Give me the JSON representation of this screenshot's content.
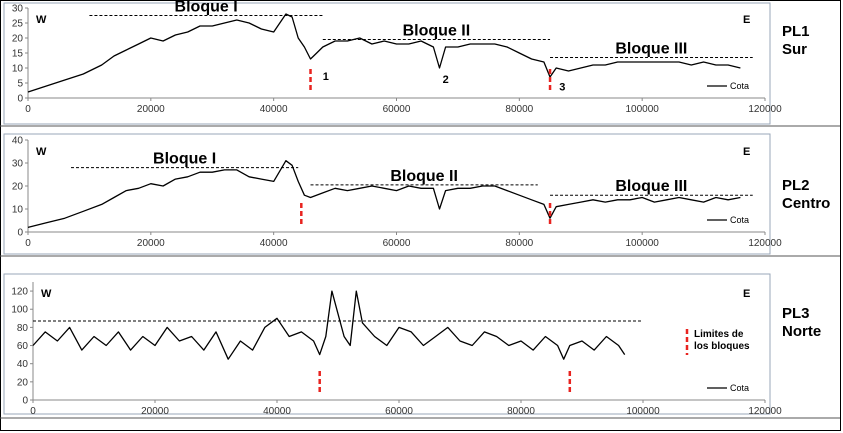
{
  "chart_data": [
    {
      "type": "line",
      "panel_label_lines": [
        "PL1",
        "Sur"
      ],
      "left_label": "W",
      "right_label": "E",
      "xlim": [
        0,
        120000
      ],
      "ylim": [
        0,
        30
      ],
      "xticks": [
        0,
        20000,
        40000,
        60000,
        80000,
        100000,
        120000
      ],
      "yticks": [
        0,
        5,
        10,
        15,
        20,
        25,
        30
      ],
      "legend": "Cota",
      "series": [
        {
          "name": "Cota",
          "x": [
            0,
            3000,
            6000,
            9000,
            12000,
            14000,
            16000,
            18000,
            20000,
            22000,
            24000,
            26000,
            28000,
            30000,
            32000,
            34000,
            36000,
            38000,
            40000,
            42000,
            43000,
            44000,
            45000,
            46000,
            47000,
            48000,
            50000,
            52000,
            54000,
            56000,
            58000,
            60000,
            62000,
            64000,
            66000,
            67000,
            68000,
            70000,
            72000,
            74000,
            76000,
            78000,
            80000,
            82000,
            84000,
            85000,
            86000,
            88000,
            90000,
            92000,
            94000,
            96000,
            98000,
            100000,
            102000,
            104000,
            106000,
            108000,
            110000,
            112000,
            114000,
            116000
          ],
          "y": [
            2,
            4,
            6,
            8,
            11,
            14,
            16,
            18,
            20,
            19,
            21,
            22,
            24,
            24,
            25,
            26,
            25,
            23,
            22,
            28,
            27,
            20,
            17,
            13,
            15,
            17,
            19,
            19,
            20,
            18,
            19,
            18,
            18,
            19,
            17,
            10,
            17,
            17,
            18,
            18,
            18,
            17,
            15,
            13,
            12,
            7,
            10,
            9,
            10,
            11,
            11,
            12,
            12,
            12,
            12,
            12,
            12,
            11,
            12,
            11,
            11,
            10
          ]
        }
      ],
      "blocks": [
        {
          "label": "Bloque I",
          "range": [
            10000,
            48000
          ],
          "level": 27.5
        },
        {
          "label": "Bloque II",
          "range": [
            48000,
            85000
          ],
          "level": 19.5
        },
        {
          "label": "Bloque III",
          "range": [
            85000,
            118000
          ],
          "level": 13.5
        }
      ],
      "boundaries": [
        46000,
        85000
      ],
      "boundary_numbers": [
        {
          "text": "1",
          "x": 48500,
          "y": 6
        },
        {
          "text": "2",
          "x": 68000,
          "y": 5
        },
        {
          "text": "3",
          "x": 87000,
          "y": 2.5
        }
      ]
    },
    {
      "type": "line",
      "panel_label_lines": [
        "PL2",
        "Centro"
      ],
      "left_label": "W",
      "right_label": "E",
      "xlim": [
        0,
        120000
      ],
      "ylim": [
        0,
        40
      ],
      "xticks": [
        0,
        20000,
        40000,
        60000,
        80000,
        100000,
        120000
      ],
      "yticks": [
        0,
        10,
        20,
        30,
        40
      ],
      "legend": "Cota",
      "series": [
        {
          "name": "Cota",
          "x": [
            0,
            3000,
            6000,
            9000,
            12000,
            14000,
            16000,
            18000,
            20000,
            22000,
            24000,
            26000,
            28000,
            30000,
            32000,
            34000,
            36000,
            38000,
            40000,
            42000,
            43000,
            44000,
            45000,
            46000,
            48000,
            50000,
            52000,
            54000,
            56000,
            58000,
            60000,
            62000,
            64000,
            66000,
            67000,
            68000,
            70000,
            72000,
            74000,
            76000,
            78000,
            80000,
            82000,
            84000,
            85000,
            86000,
            88000,
            90000,
            92000,
            94000,
            96000,
            98000,
            100000,
            102000,
            104000,
            106000,
            108000,
            110000,
            112000,
            114000,
            116000
          ],
          "y": [
            2,
            4,
            6,
            9,
            12,
            15,
            18,
            19,
            21,
            20,
            23,
            24,
            26,
            26,
            27,
            27,
            24,
            23,
            22,
            31,
            29,
            22,
            16,
            15,
            17,
            19,
            18,
            19,
            20,
            19,
            18,
            20,
            19,
            19,
            10,
            18,
            19,
            19,
            20,
            20,
            18,
            16,
            14,
            12,
            6,
            11,
            12,
            13,
            14,
            13,
            14,
            14,
            15,
            13,
            14,
            15,
            14,
            13,
            15,
            14,
            15
          ]
        }
      ],
      "blocks": [
        {
          "label": "Bloque I",
          "range": [
            7000,
            44000
          ],
          "level": 28
        },
        {
          "label": "Bloque II",
          "range": [
            46000,
            83000
          ],
          "level": 20.5
        },
        {
          "label": "Bloque III",
          "range": [
            85000,
            118000
          ],
          "level": 16
        }
      ],
      "boundaries": [
        44500,
        85000
      ],
      "boundary_numbers": []
    },
    {
      "type": "line",
      "panel_label_lines": [
        "PL3",
        "Norte"
      ],
      "left_label": "W",
      "right_label": "E",
      "xlim": [
        0,
        120000
      ],
      "ylim": [
        0,
        130
      ],
      "xticks": [
        0,
        20000,
        40000,
        60000,
        80000,
        100000,
        120000
      ],
      "yticks": [
        0,
        20,
        40,
        60,
        80,
        100,
        120
      ],
      "legend": "Cota",
      "legend_note_lines": [
        "Limites de",
        "los bloques"
      ],
      "series": [
        {
          "name": "Cota",
          "x": [
            0,
            2000,
            4000,
            6000,
            8000,
            10000,
            12000,
            14000,
            16000,
            18000,
            20000,
            22000,
            24000,
            26000,
            28000,
            30000,
            32000,
            34000,
            36000,
            38000,
            40000,
            42000,
            44000,
            46000,
            47000,
            48000,
            49000,
            50000,
            51000,
            52000,
            53000,
            54000,
            56000,
            58000,
            60000,
            62000,
            64000,
            66000,
            68000,
            70000,
            72000,
            74000,
            76000,
            78000,
            80000,
            82000,
            84000,
            86000,
            87000,
            88000,
            90000,
            92000,
            94000,
            96000,
            97000
          ],
          "y": [
            60,
            75,
            65,
            80,
            55,
            70,
            60,
            75,
            55,
            70,
            60,
            80,
            65,
            70,
            55,
            75,
            45,
            65,
            55,
            80,
            90,
            70,
            75,
            65,
            50,
            70,
            120,
            95,
            70,
            60,
            120,
            85,
            70,
            60,
            80,
            75,
            60,
            70,
            80,
            65,
            60,
            75,
            70,
            60,
            65,
            55,
            70,
            60,
            45,
            60,
            65,
            55,
            70,
            60,
            50
          ]
        }
      ],
      "blocks": [
        {
          "label": "",
          "range": [
            0,
            100000
          ],
          "level": 87
        }
      ],
      "boundaries": [
        47000,
        88000
      ],
      "boundary_numbers": []
    }
  ]
}
